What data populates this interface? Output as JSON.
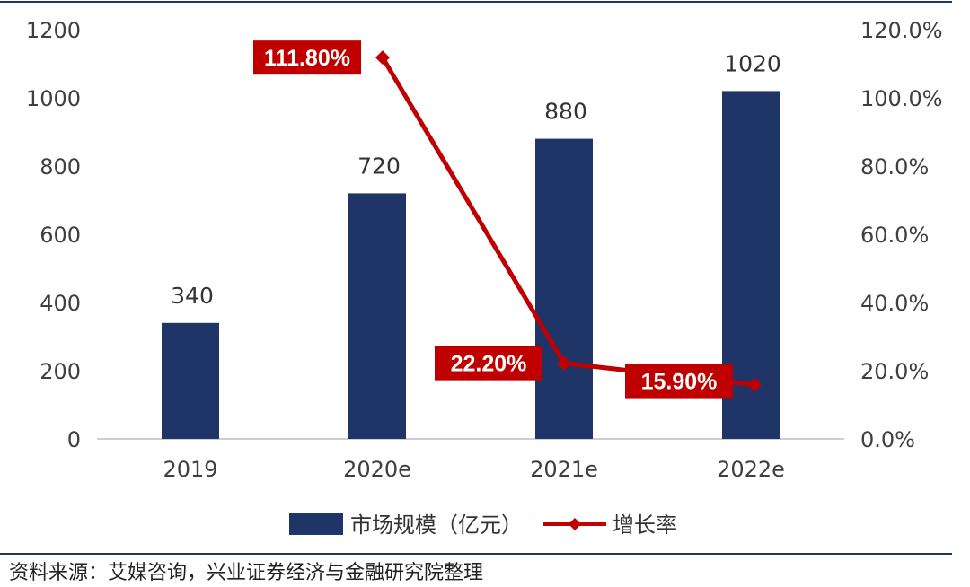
{
  "chart_data": {
    "type": "bar",
    "categories": [
      "2019",
      "2020e",
      "2021e",
      "2022e"
    ],
    "series": [
      {
        "name": "市场规模（亿元）",
        "axis": "left",
        "kind": "bar",
        "color": "#1f3568",
        "values": [
          340,
          720,
          880,
          1020
        ]
      },
      {
        "name": "增长率",
        "axis": "right",
        "kind": "line",
        "color": "#c00000",
        "values": [
          null,
          111.8,
          22.2,
          15.9
        ],
        "labels": [
          "",
          "111.80%",
          "22.20%",
          "15.90%"
        ]
      }
    ],
    "y_left": {
      "min": 0,
      "max": 1200,
      "ticks": [
        "0",
        "200",
        "400",
        "600",
        "800",
        "1000",
        "1200"
      ]
    },
    "y_right": {
      "min": 0,
      "max": 120,
      "ticks": [
        "0.0%",
        "20.0%",
        "40.0%",
        "60.0%",
        "80.0%",
        "100.0%",
        "120.0%"
      ]
    },
    "bar_labels": [
      "340",
      "720",
      "880",
      "1020"
    ],
    "legend_position": "bottom",
    "grid": false
  },
  "source_note": "资料来源：艾媒咨询，兴业证券经济与金融研究院整理"
}
